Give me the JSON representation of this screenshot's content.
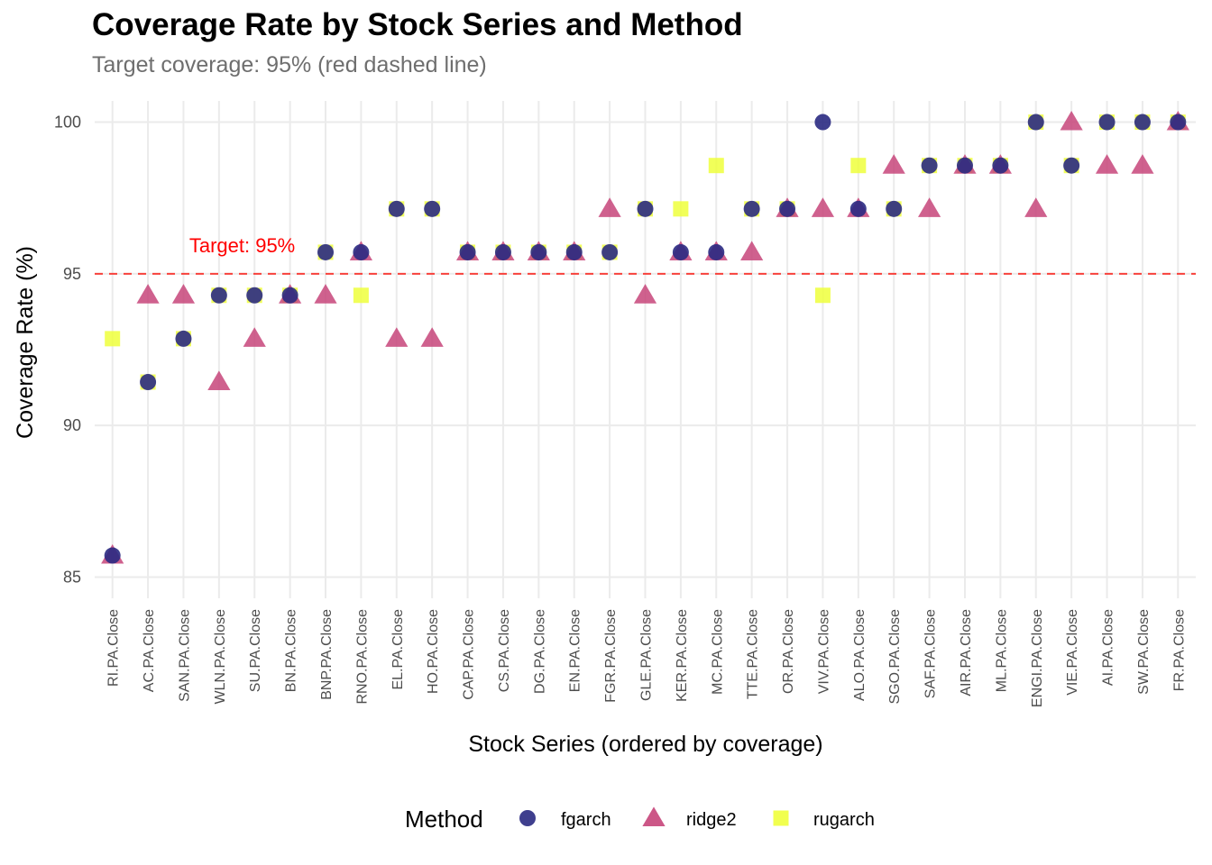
{
  "chart_data": {
    "type": "scatter",
    "title": "Coverage Rate by Stock Series and Method",
    "subtitle": "Target coverage: 95% (red dashed line)",
    "xlabel": "Stock Series (ordered by coverage)",
    "ylabel": "Coverage Rate (%)",
    "ylim": [
      84.3,
      100.7
    ],
    "yticks": [
      85,
      90,
      95,
      100
    ],
    "categories": [
      "RI.PA.Close",
      "AC.PA.Close",
      "SAN.PA.Close",
      "WLN.PA.Close",
      "SU.PA.Close",
      "BN.PA.Close",
      "BNP.PA.Close",
      "RNO.PA.Close",
      "EL.PA.Close",
      "HO.PA.Close",
      "CAP.PA.Close",
      "CS.PA.Close",
      "DG.PA.Close",
      "EN.PA.Close",
      "FGR.PA.Close",
      "GLE.PA.Close",
      "KER.PA.Close",
      "MC.PA.Close",
      "TTE.PA.Close",
      "OR.PA.Close",
      "VIV.PA.Close",
      "ALO.PA.Close",
      "SGO.PA.Close",
      "SAF.PA.Close",
      "AIR.PA.Close",
      "ML.PA.Close",
      "ENGI.PA.Close",
      "VIE.PA.Close",
      "AI.PA.Close",
      "SW.PA.Close",
      "FR.PA.Close"
    ],
    "reference_line": {
      "value": 95,
      "label": "Target: 95%",
      "color": "#f8413b"
    },
    "legend": {
      "title": "Method",
      "position": "bottom"
    },
    "grid": true,
    "series": [
      {
        "name": "rugarch",
        "shape": "square",
        "color": "#efff3c",
        "values": [
          92.86,
          91.43,
          92.86,
          94.29,
          94.29,
          94.29,
          95.71,
          94.29,
          97.14,
          97.14,
          95.71,
          95.71,
          95.71,
          95.71,
          95.71,
          97.14,
          97.14,
          98.57,
          97.14,
          97.14,
          94.29,
          98.57,
          97.14,
          98.57,
          98.57,
          98.57,
          100,
          98.57,
          100,
          100,
          100
        ]
      },
      {
        "name": "ridge2",
        "shape": "triangle",
        "color": "#c7457a",
        "values": [
          85.71,
          94.29,
          94.29,
          91.43,
          92.86,
          94.29,
          94.29,
          95.71,
          92.86,
          92.86,
          95.71,
          95.71,
          95.71,
          95.71,
          97.14,
          94.29,
          95.71,
          95.71,
          95.71,
          97.14,
          97.14,
          97.14,
          98.57,
          97.14,
          98.57,
          98.57,
          97.14,
          100,
          98.57,
          98.57,
          100
        ]
      },
      {
        "name": "fgarch",
        "shape": "circle",
        "color": "#2a2a82",
        "values": [
          85.71,
          91.43,
          92.86,
          94.29,
          94.29,
          94.29,
          95.71,
          95.71,
          97.14,
          97.14,
          95.71,
          95.71,
          95.71,
          95.71,
          95.71,
          97.14,
          95.71,
          95.71,
          97.14,
          97.14,
          100,
          97.14,
          97.14,
          98.57,
          98.57,
          98.57,
          100,
          98.57,
          100,
          100,
          100
        ]
      }
    ]
  }
}
